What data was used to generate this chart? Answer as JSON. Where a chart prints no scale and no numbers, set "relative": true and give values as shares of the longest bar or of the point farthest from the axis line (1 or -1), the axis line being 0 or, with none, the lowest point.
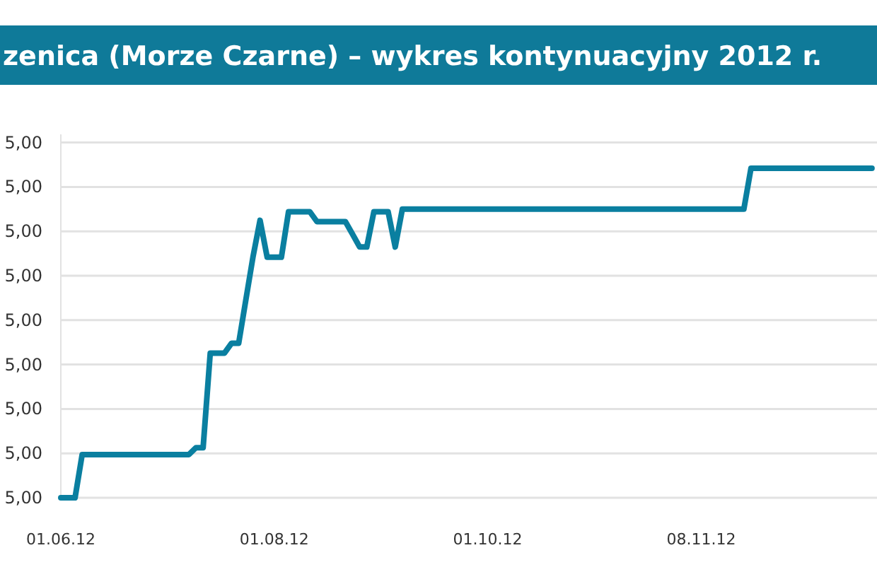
{
  "chart_data": {
    "type": "line",
    "title": "zenica (Morze Czarne) – wykres kontynuacyjny 2012 r.",
    "relative": true,
    "categories": [
      "01.06.12",
      null,
      null,
      null,
      null,
      null,
      null,
      null,
      null,
      null,
      null,
      null,
      null,
      null,
      null,
      null,
      null,
      null,
      null,
      null,
      null,
      null,
      null,
      null,
      null,
      null,
      null,
      null,
      null,
      null,
      "01.08.12",
      null,
      null,
      null,
      null,
      null,
      null,
      null,
      null,
      null,
      null,
      null,
      null,
      null,
      null,
      null,
      null,
      null,
      null,
      null,
      null,
      null,
      null,
      null,
      null,
      null,
      null,
      null,
      null,
      null,
      "01.10.12",
      null,
      null,
      null,
      null,
      null,
      null,
      null,
      null,
      null,
      null,
      null,
      null,
      null,
      null,
      null,
      null,
      null,
      null,
      null,
      null,
      null,
      null,
      null,
      null,
      null,
      null,
      null,
      null,
      null,
      "08.11.12",
      null,
      null,
      null,
      null,
      null,
      null,
      null,
      null,
      null,
      null,
      null,
      null,
      null,
      null,
      null,
      null,
      null,
      null,
      null,
      null,
      null,
      null,
      null,
      null
    ],
    "series": [
      {
        "color": "#0a7fa0",
        "values": [
          0,
          0,
          0,
          0.131,
          0.131,
          0.131,
          0.131,
          0.131,
          0.131,
          0.131,
          0.131,
          0.131,
          0.131,
          0.131,
          0.131,
          0.131,
          0.131,
          0.131,
          0.131,
          0.152,
          0.152,
          0.439,
          0.439,
          0.439,
          0.469,
          0.469,
          0.6,
          0.73,
          0.842,
          0.73,
          0.73,
          0.73,
          0.868,
          0.868,
          0.868,
          0.868,
          0.838,
          0.838,
          0.838,
          0.838,
          0.838,
          0.8,
          0.761,
          0.761,
          0.868,
          0.868,
          0.868,
          0.761,
          0.876,
          0.876,
          0.876,
          0.876,
          0.876,
          0.876,
          0.876,
          0.876,
          0.876,
          0.876,
          0.876,
          0.876,
          0.876,
          0.876,
          0.876,
          0.876,
          0.876,
          0.876,
          0.876,
          0.876,
          0.876,
          0.876,
          0.876,
          0.876,
          0.876,
          0.876,
          0.876,
          0.876,
          0.876,
          0.876,
          0.876,
          0.876,
          0.876,
          0.876,
          0.876,
          0.876,
          0.876,
          0.876,
          0.876,
          0.876,
          0.876,
          0.876,
          0.876,
          0.876,
          0.876,
          0.876,
          0.876,
          0.876,
          0.876,
          1,
          1,
          1,
          1,
          1,
          1,
          1,
          1,
          1,
          1,
          1,
          1,
          1,
          1,
          1,
          1,
          1,
          1
        ]
      }
    ],
    "annotations": [
      "5,00",
      "5,00",
      "5,00",
      "5,00",
      "5,00",
      "5,00",
      "5,00",
      "5,00",
      "5,00"
    ],
    "grid": "y",
    "marker": "none",
    "line_style": "solid"
  }
}
